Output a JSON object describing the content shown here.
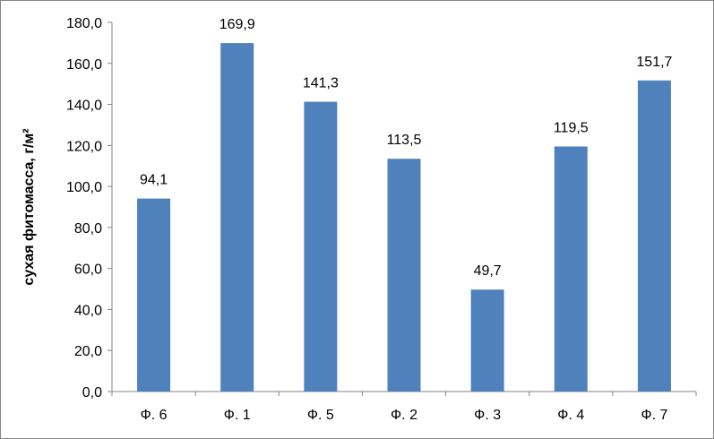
{
  "chart_data": {
    "type": "bar",
    "categories": [
      "Ф. 6",
      "Ф. 1",
      "Ф. 5",
      "Ф. 2",
      "Ф. 3",
      "Ф. 4",
      "Ф. 7"
    ],
    "values": [
      94.1,
      169.9,
      141.3,
      113.5,
      49.7,
      119.5,
      151.7
    ],
    "data_labels": [
      "94,1",
      "169,9",
      "141,3",
      "113,5",
      "49,7",
      "119,5",
      "151,7"
    ],
    "title": "",
    "xlabel": "",
    "ylabel": "сухая фитомасса, г/м²",
    "ylim": [
      0,
      180
    ],
    "y_ticks": [
      0,
      20,
      40,
      60,
      80,
      100,
      120,
      140,
      160,
      180
    ],
    "y_tick_labels": [
      "0,0",
      "20,0",
      "40,0",
      "60,0",
      "80,0",
      "100,0",
      "120,0",
      "140,0",
      "160,0",
      "180,0"
    ],
    "grid": false,
    "legend": "none",
    "bar_color": "#4F81BD"
  }
}
